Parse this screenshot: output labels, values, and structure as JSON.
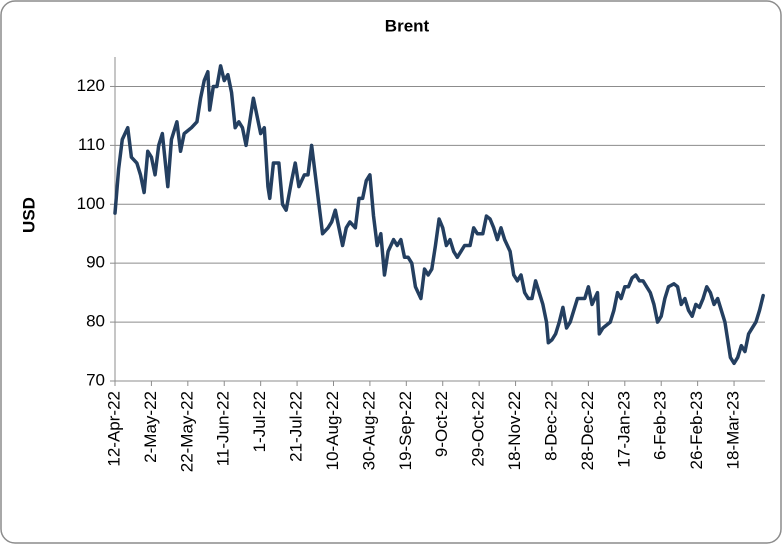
{
  "chart_data": {
    "type": "line",
    "title": "Brent",
    "y_label": "USD",
    "x": [
      "12-Apr-22",
      "14-Apr-22",
      "16-Apr-22",
      "19-Apr-22",
      "21-Apr-22",
      "24-Apr-22",
      "26-Apr-22",
      "28-Apr-22",
      "30-Apr-22",
      "2-May-22",
      "4-May-22",
      "6-May-22",
      "8-May-22",
      "11-May-22",
      "13-May-22",
      "16-May-22",
      "18-May-22",
      "20-May-22",
      "24-May-22",
      "27-May-22",
      "29-May-22",
      "31-May-22",
      "2-Jun-22",
      "3-Jun-22",
      "5-Jun-22",
      "7-Jun-22",
      "9-Jun-22",
      "11-Jun-22",
      "13-Jun-22",
      "15-Jun-22",
      "17-Jun-22",
      "19-Jun-22",
      "21-Jun-22",
      "23-Jun-22",
      "25-Jun-22",
      "27-Jun-22",
      "29-Jun-22",
      "1-Jul-22",
      "3-Jul-22",
      "5-Jul-22",
      "6-Jul-22",
      "8-Jul-22",
      "11-Jul-22",
      "13-Jul-22",
      "15-Jul-22",
      "18-Jul-22",
      "20-Jul-22",
      "22-Jul-22",
      "25-Jul-22",
      "27-Jul-22",
      "29-Jul-22",
      "31-Jul-22",
      "2-Aug-22",
      "4-Aug-22",
      "7-Aug-22",
      "9-Aug-22",
      "11-Aug-22",
      "13-Aug-22",
      "15-Aug-22",
      "17-Aug-22",
      "19-Aug-22",
      "22-Aug-22",
      "24-Aug-22",
      "26-Aug-22",
      "28-Aug-22",
      "30-Aug-22",
      "1-Sep-22",
      "3-Sep-22",
      "5-Sep-22",
      "7-Sep-22",
      "9-Sep-22",
      "12-Sep-22",
      "14-Sep-22",
      "16-Sep-22",
      "18-Sep-22",
      "20-Sep-22",
      "22-Sep-22",
      "24-Sep-22",
      "27-Sep-22",
      "29-Sep-22",
      "1-Oct-22",
      "3-Oct-22",
      "5-Oct-22",
      "7-Oct-22",
      "9-Oct-22",
      "11-Oct-22",
      "13-Oct-22",
      "15-Oct-22",
      "17-Oct-22",
      "19-Oct-22",
      "21-Oct-22",
      "24-Oct-22",
      "26-Oct-22",
      "28-Oct-22",
      "31-Oct-22",
      "2-Nov-22",
      "4-Nov-22",
      "6-Nov-22",
      "8-Nov-22",
      "10-Nov-22",
      "12-Nov-22",
      "15-Nov-22",
      "17-Nov-22",
      "19-Nov-22",
      "21-Nov-22",
      "23-Nov-22",
      "25-Nov-22",
      "27-Nov-22",
      "29-Nov-22",
      "1-Dec-22",
      "3-Dec-22",
      "5-Dec-22",
      "6-Dec-22",
      "8-Dec-22",
      "10-Dec-22",
      "12-Dec-22",
      "14-Dec-22",
      "16-Dec-22",
      "18-Dec-22",
      "20-Dec-22",
      "22-Dec-22",
      "24-Dec-22",
      "26-Dec-22",
      "28-Dec-22",
      "30-Dec-22",
      "2-Jan-23",
      "3-Jan-23",
      "5-Jan-23",
      "9-Jan-23",
      "11-Jan-23",
      "13-Jan-23",
      "15-Jan-23",
      "17-Jan-23",
      "19-Jan-23",
      "21-Jan-23",
      "23-Jan-23",
      "25-Jan-23",
      "27-Jan-23",
      "29-Jan-23",
      "31-Jan-23",
      "2-Feb-23",
      "4-Feb-23",
      "6-Feb-23",
      "8-Feb-23",
      "10-Feb-23",
      "13-Feb-23",
      "15-Feb-23",
      "17-Feb-23",
      "19-Feb-23",
      "21-Feb-23",
      "23-Feb-23",
      "25-Feb-23",
      "27-Feb-23",
      "1-Mar-23",
      "3-Mar-23",
      "5-Mar-23",
      "7-Mar-23",
      "9-Mar-23",
      "11-Mar-23",
      "13-Mar-23",
      "15-Mar-23",
      "16-Mar-23",
      "18-Mar-23",
      "20-Mar-23",
      "22-Mar-23",
      "24-Mar-23",
      "26-Mar-23",
      "28-Mar-23",
      "30-Mar-23",
      "1-Apr-23",
      "3-Apr-23"
    ],
    "series": [
      {
        "name": "Brent",
        "color": "#243f60",
        "values": [
          98.5,
          106,
          111,
          113,
          108,
          107,
          105,
          102,
          109,
          108,
          105,
          110,
          112,
          103,
          111,
          114,
          109,
          112,
          113,
          114,
          118,
          121,
          122.5,
          116,
          120,
          120,
          123.5,
          121,
          122,
          119,
          113,
          114,
          113,
          110,
          114,
          118,
          115,
          112,
          113,
          103,
          101,
          107,
          107,
          100,
          99,
          104,
          107,
          103,
          105,
          105,
          110,
          105,
          100,
          95,
          96,
          97,
          99,
          96,
          93,
          96,
          97,
          96,
          101,
          101,
          104,
          105,
          98,
          93,
          95,
          88,
          92,
          94,
          93,
          94,
          91,
          91,
          90,
          86,
          84,
          89,
          88,
          89,
          93,
          97.5,
          96,
          93,
          94,
          92,
          91,
          92,
          93,
          93,
          96,
          95,
          95,
          98,
          97.5,
          96,
          94,
          96,
          94,
          92,
          88,
          87,
          88,
          85,
          84,
          84,
          87,
          85,
          83,
          80,
          76.5,
          77,
          78,
          80,
          82.5,
          79,
          80,
          82,
          84,
          84,
          84,
          86,
          83,
          85,
          78,
          79,
          80,
          82,
          85,
          84,
          86,
          86,
          87.5,
          88,
          87,
          87,
          86,
          85,
          83,
          80,
          81,
          84,
          86,
          86.5,
          86,
          83,
          84,
          82,
          81,
          83,
          82.5,
          84,
          86,
          85,
          83,
          84,
          82,
          80,
          76,
          74,
          73,
          74,
          76,
          75,
          78,
          79,
          80,
          82,
          84.5
        ]
      }
    ],
    "xlim": [
      "12-Apr-22",
      "4-Apr-23"
    ],
    "xticks": [
      "12-Apr-22",
      "2-May-22",
      "22-May-22",
      "11-Jun-22",
      "1-Jul-22",
      "21-Jul-22",
      "10-Aug-22",
      "30-Aug-22",
      "19-Sep-22",
      "9-Oct-22",
      "29-Oct-22",
      "18-Nov-22",
      "8-Dec-22",
      "28-Dec-22",
      "17-Jan-23",
      "6-Feb-23",
      "26-Feb-23",
      "18-Mar-23"
    ],
    "ylim": [
      70,
      125
    ],
    "yticks": [
      70,
      80,
      90,
      100,
      110,
      120
    ],
    "grid": true
  }
}
